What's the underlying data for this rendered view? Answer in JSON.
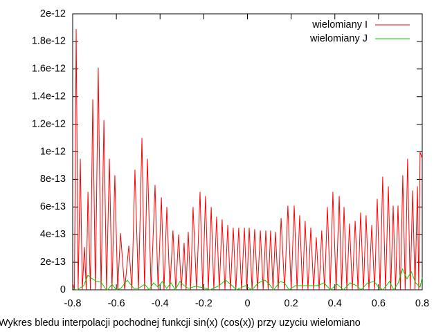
{
  "chart_data": {
    "type": "line",
    "xlabel": "Wykres bledu interpolacji pochodnej funkcji sin(x) (cos(x)) przy uzyciu wielomiano",
    "xlim": [
      -0.8,
      0.8
    ],
    "xticks": [
      -0.8,
      -0.6,
      -0.4,
      -0.2,
      0,
      0.2,
      0.4,
      0.6,
      0.8
    ],
    "ylim": [
      0,
      2e-12
    ],
    "yticks": [
      0,
      2e-13,
      4e-13,
      6e-13,
      8e-13,
      1e-12,
      1.2e-12,
      1.4e-12,
      1.6e-12,
      1.8e-12,
      2e-12
    ],
    "legend": "upper right",
    "series": [
      {
        "name": "wielomiany I",
        "color": "#ff0000",
        "x": [
          -0.8,
          -0.792,
          -0.784,
          -0.775,
          -0.765,
          -0.756,
          -0.746,
          -0.738,
          -0.73,
          -0.719,
          -0.708,
          -0.696,
          -0.683,
          -0.67,
          -0.657,
          -0.645,
          -0.632,
          -0.62,
          -0.607,
          -0.594,
          -0.581,
          -0.562,
          -0.543,
          -0.529,
          -0.515,
          -0.499,
          -0.483,
          -0.471,
          -0.458,
          -0.441,
          -0.423,
          -0.409,
          -0.394,
          -0.382,
          -0.369,
          -0.355,
          -0.341,
          -0.328,
          -0.315,
          -0.303,
          -0.29,
          -0.281,
          -0.271,
          -0.26,
          -0.249,
          -0.233,
          -0.217,
          -0.205,
          -0.192,
          -0.179,
          -0.166,
          -0.154,
          -0.141,
          -0.129,
          -0.116,
          -0.103,
          -0.09,
          -0.078,
          -0.065,
          -0.053,
          -0.04,
          -0.027,
          -0.014,
          -0.003,
          0.008,
          0.021,
          0.033,
          0.046,
          0.059,
          0.072,
          0.084,
          0.095,
          0.106,
          0.117,
          0.128,
          0.141,
          0.154,
          0.17,
          0.185,
          0.2,
          0.214,
          0.227,
          0.239,
          0.252,
          0.264,
          0.277,
          0.29,
          0.303,
          0.315,
          0.328,
          0.34,
          0.353,
          0.366,
          0.379,
          0.391,
          0.406,
          0.42,
          0.431,
          0.442,
          0.455,
          0.467,
          0.48,
          0.493,
          0.506,
          0.518,
          0.531,
          0.543,
          0.556,
          0.569,
          0.582,
          0.594,
          0.607,
          0.619,
          0.632,
          0.645,
          0.656,
          0.667,
          0.678,
          0.689,
          0.7,
          0.711,
          0.722,
          0.733,
          0.745,
          0.756,
          0.767,
          0.778,
          0.784,
          0.79,
          0.8
        ],
        "values": [
          5e-14,
          0,
          1.89e-12,
          0,
          9.5e-13,
          0,
          3.1e-13,
          0,
          7.1e-13,
          0,
          1.38e-12,
          0,
          1.61e-12,
          0,
          1.23e-12,
          0,
          9.5e-13,
          0,
          8.3e-13,
          0,
          4.1e-13,
          0,
          3.2e-13,
          0,
          8.7e-13,
          0,
          1.1e-12,
          0,
          9.5e-13,
          0,
          7.6e-13,
          0,
          6.7e-13,
          0,
          6e-13,
          0,
          4.3e-13,
          0,
          4e-13,
          0,
          3.4e-13,
          0,
          4.2e-13,
          0,
          6e-13,
          0,
          7.1e-13,
          0,
          6.8e-13,
          0,
          6e-13,
          0,
          5.3e-13,
          0,
          5.1e-13,
          0,
          4.7e-13,
          0,
          4.5e-13,
          0,
          4.5e-13,
          0,
          4.5e-13,
          0,
          4.5e-13,
          0,
          4.4e-13,
          0,
          4.3e-13,
          0,
          4.3e-13,
          0,
          4.3e-13,
          0,
          4.2e-13,
          0,
          5.2e-13,
          0,
          6.1e-13,
          0,
          6.1e-13,
          0,
          5.4e-13,
          0,
          5e-13,
          0,
          4.5e-13,
          0,
          3.8e-13,
          0,
          4.3e-13,
          0,
          6e-13,
          0,
          7.1e-13,
          0,
          6.8e-13,
          0,
          6e-13,
          0,
          4.8e-13,
          0,
          5e-13,
          0,
          5.6e-13,
          0,
          5.4e-13,
          0,
          4.7e-13,
          0,
          6.6e-13,
          0,
          8.2e-13,
          0,
          7.5e-13,
          0,
          6.1e-13,
          0,
          6.1e-13,
          0,
          8.3e-13,
          0,
          9.5e-13,
          0,
          7.2e-13,
          0,
          7.5e-13,
          0,
          1e-12,
          9.5e-13
        ]
      },
      {
        "name": "wielomiany J",
        "color": "#00cc00",
        "x": [
          -0.8,
          -0.78,
          -0.75,
          -0.73,
          -0.71,
          -0.69,
          -0.67,
          -0.65,
          -0.64,
          -0.62,
          -0.6,
          -0.58,
          -0.55,
          -0.52,
          -0.5,
          -0.47,
          -0.45,
          -0.43,
          -0.41,
          -0.39,
          -0.37,
          -0.35,
          -0.33,
          -0.31,
          -0.29,
          -0.27,
          -0.24,
          -0.2,
          -0.17,
          -0.13,
          -0.1,
          -0.07,
          -0.05,
          -0.01,
          0.02,
          0.05,
          0.08,
          0.1,
          0.12,
          0.15,
          0.17,
          0.19,
          0.22,
          0.27,
          0.32,
          0.35,
          0.38,
          0.41,
          0.44,
          0.47,
          0.5,
          0.52,
          0.55,
          0.58,
          0.6,
          0.62,
          0.65,
          0.67,
          0.69,
          0.71,
          0.73,
          0.75,
          0.77,
          0.79,
          0.8
        ],
        "values": [
          7e-15,
          0,
          3e-14,
          1.05e-13,
          8e-14,
          6e-14,
          5.5e-14,
          1e-14,
          0,
          4e-14,
          0,
          1e-14,
          7e-14,
          1e-14,
          1e-14,
          4e-14,
          0,
          5e-14,
          2e-14,
          6e-14,
          1e-14,
          5e-14,
          0,
          6e-14,
          3e-14,
          1e-14,
          2.5e-14,
          1.5e-14,
          0,
          3e-14,
          7e-14,
          3e-14,
          0,
          3e-14,
          0,
          5e-14,
          7e-14,
          4e-14,
          0,
          6e-14,
          5e-14,
          0,
          3e-14,
          3e-14,
          3e-14,
          5e-14,
          0,
          4e-14,
          0,
          5e-14,
          3e-14,
          0,
          5e-14,
          6e-14,
          2e-14,
          0,
          6e-14,
          0,
          5e-14,
          1.5e-13,
          8e-14,
          1.3e-13,
          5e-14,
          2e-14,
          9e-14
        ]
      }
    ]
  }
}
